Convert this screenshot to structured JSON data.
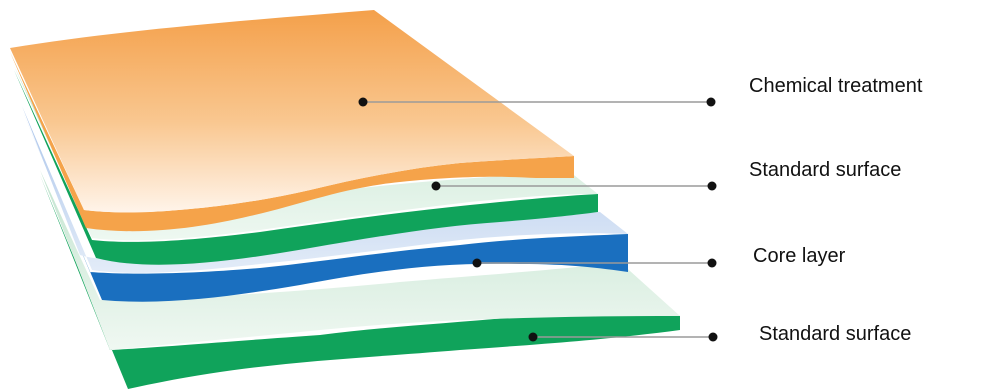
{
  "layers": [
    {
      "label": "Chemical treatment"
    },
    {
      "label": "Standard surface"
    },
    {
      "label": "Core layer"
    },
    {
      "label": "Standard surface"
    }
  ],
  "colors": {
    "chemical_treatment": "#f5a34a",
    "chemical_treatment_light": "#fde4cb",
    "standard_surface": "#10a35b",
    "standard_surface_light": "#d3ebde",
    "core_layer": "#1a6fbf",
    "core_layer_light": "#bcd2ee",
    "leader_line": "#9a9a9a",
    "label_text": "#111111"
  }
}
